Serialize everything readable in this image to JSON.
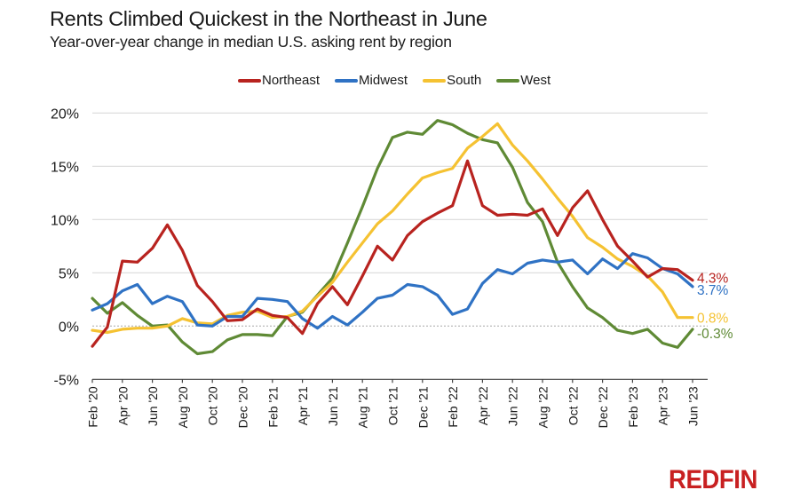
{
  "header": {
    "title": "Rents Climbed Quickest in the Northeast in June",
    "subtitle": "Year-over-year change in median U.S. asking rent by region"
  },
  "branding": {
    "logo_text": "REDFIN",
    "logo_color": "#c82021"
  },
  "chart_data": {
    "type": "line",
    "title": "Rents Climbed Quickest in the Northeast in June",
    "subtitle": "Year-over-year change in median U.S. asking rent by region",
    "xlabel": "",
    "ylabel": "",
    "ylim": [
      -5,
      20
    ],
    "yticks": [
      -5,
      0,
      5,
      10,
      15,
      20
    ],
    "ytick_labels": [
      "-5%",
      "0%",
      "5%",
      "10%",
      "15%",
      "20%"
    ],
    "grid": true,
    "legend_position": "top-center",
    "x": [
      "Feb '20",
      "Mar '20",
      "Apr '20",
      "May '20",
      "Jun '20",
      "Jul '20",
      "Aug '20",
      "Sep '20",
      "Oct '20",
      "Nov '20",
      "Dec '20",
      "Jan '21",
      "Feb '21",
      "Mar '21",
      "Apr '21",
      "May '21",
      "Jun '21",
      "Jul '21",
      "Aug '21",
      "Sep '21",
      "Oct '21",
      "Nov '21",
      "Dec '21",
      "Jan '22",
      "Feb '22",
      "Mar '22",
      "Apr '22",
      "May '22",
      "Jun '22",
      "Jul '22",
      "Aug '22",
      "Sep '22",
      "Oct '22",
      "Nov '22",
      "Dec '22",
      "Jan '23",
      "Feb '23",
      "Mar '23",
      "Apr '23",
      "May '23",
      "Jun '23"
    ],
    "xtick_labels": [
      "Feb '20",
      "Apr '20",
      "Jun '20",
      "Aug '20",
      "Oct '20",
      "Dec '20",
      "Feb '21",
      "Apr '21",
      "Jun '21",
      "Aug '21",
      "Oct '21",
      "Dec '21",
      "Feb '22",
      "Apr '22",
      "Jun '22",
      "Aug '22",
      "Oct '22",
      "Dec '22",
      "Feb '23",
      "Apr '23",
      "Jun '23"
    ],
    "series": [
      {
        "name": "Northeast",
        "color": "#b8231f",
        "end_label": "4.3%",
        "values": [
          -1.9,
          -0.1,
          6.1,
          6.0,
          7.3,
          9.5,
          7.1,
          3.8,
          2.3,
          0.5,
          0.6,
          1.6,
          1.0,
          0.8,
          -0.7,
          2.1,
          3.7,
          2.0,
          4.7,
          7.5,
          6.2,
          8.5,
          9.8,
          10.6,
          11.3,
          15.5,
          11.3,
          10.4,
          10.5,
          10.4,
          11.0,
          8.5,
          11.1,
          12.7,
          10.0,
          7.5,
          6.1,
          4.6,
          5.4,
          5.3,
          4.3
        ]
      },
      {
        "name": "Midwest",
        "color": "#2f72c4",
        "end_label": "3.7%",
        "values": [
          1.5,
          2.1,
          3.3,
          3.9,
          2.1,
          2.8,
          2.3,
          0.1,
          0.0,
          0.9,
          0.9,
          2.6,
          2.5,
          2.3,
          0.7,
          -0.2,
          0.9,
          0.1,
          1.3,
          2.6,
          2.9,
          3.9,
          3.7,
          2.9,
          1.1,
          1.6,
          4.0,
          5.3,
          4.9,
          5.9,
          6.2,
          6.0,
          6.2,
          4.9,
          6.3,
          5.4,
          6.8,
          6.4,
          5.4,
          4.9,
          3.7
        ]
      },
      {
        "name": "South",
        "color": "#f5c232",
        "end_label": "0.8%",
        "values": [
          -0.4,
          -0.6,
          -0.3,
          -0.2,
          -0.2,
          0.0,
          0.7,
          0.3,
          0.2,
          1.0,
          1.3,
          1.4,
          0.8,
          0.9,
          1.4,
          2.8,
          4.1,
          6.0,
          7.8,
          9.6,
          10.8,
          12.4,
          13.9,
          14.4,
          14.8,
          16.7,
          17.8,
          19.0,
          17.0,
          15.5,
          13.8,
          12.0,
          10.3,
          8.3,
          7.4,
          6.3,
          5.6,
          4.7,
          3.2,
          0.8,
          0.8
        ]
      },
      {
        "name": "West",
        "color": "#5f8a35",
        "end_label": "-0.3%",
        "values": [
          2.6,
          1.2,
          2.2,
          1.0,
          0.0,
          0.1,
          -1.5,
          -2.6,
          -2.4,
          -1.3,
          -0.8,
          -0.8,
          -0.9,
          0.9,
          1.3,
          2.9,
          4.5,
          7.8,
          11.2,
          14.8,
          17.7,
          18.2,
          18.0,
          19.3,
          18.9,
          18.1,
          17.5,
          17.2,
          14.9,
          11.6,
          9.8,
          6.0,
          3.7,
          1.7,
          0.8,
          -0.4,
          -0.7,
          -0.3,
          -1.6,
          -2.0,
          -0.3
        ]
      }
    ]
  }
}
